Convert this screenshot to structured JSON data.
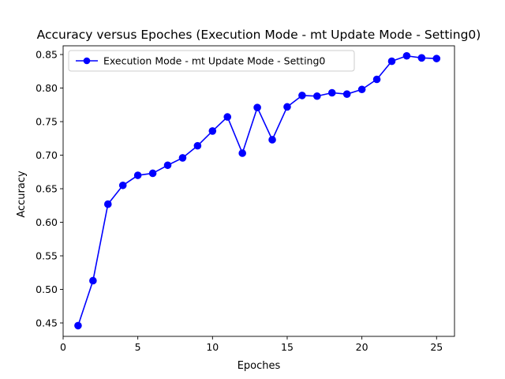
{
  "chart_data": {
    "type": "line",
    "title": "Accuracy versus Epoches (Execution Mode - mt Update Mode - Setting0)",
    "xlabel": "Epoches",
    "ylabel": "Accuracy",
    "xlim": [
      0,
      26.2
    ],
    "ylim": [
      0.43,
      0.863
    ],
    "xticks": [
      0,
      5,
      10,
      15,
      20,
      25
    ],
    "yticks": [
      0.45,
      0.5,
      0.55,
      0.6,
      0.65,
      0.7,
      0.75,
      0.8,
      0.85
    ],
    "xtick_labels": [
      "0",
      "5",
      "10",
      "15",
      "20",
      "25"
    ],
    "ytick_labels": [
      "0.45",
      "0.50",
      "0.55",
      "0.60",
      "0.65",
      "0.70",
      "0.75",
      "0.80",
      "0.85"
    ],
    "grid": false,
    "legend_position": "upper-left",
    "series": [
      {
        "name": "Execution Mode - mt Update Mode - Setting0",
        "color": "#0000ff",
        "marker": "circle",
        "x": [
          1,
          2,
          3,
          4,
          5,
          6,
          7,
          8,
          9,
          10,
          11,
          12,
          13,
          14,
          15,
          16,
          17,
          18,
          19,
          20,
          21,
          22,
          23,
          24,
          25
        ],
        "y": [
          0.446,
          0.513,
          0.627,
          0.655,
          0.67,
          0.673,
          0.685,
          0.696,
          0.714,
          0.736,
          0.757,
          0.703,
          0.771,
          0.723,
          0.772,
          0.789,
          0.788,
          0.793,
          0.791,
          0.798,
          0.813,
          0.84,
          0.848,
          0.845,
          0.844
        ]
      }
    ]
  }
}
